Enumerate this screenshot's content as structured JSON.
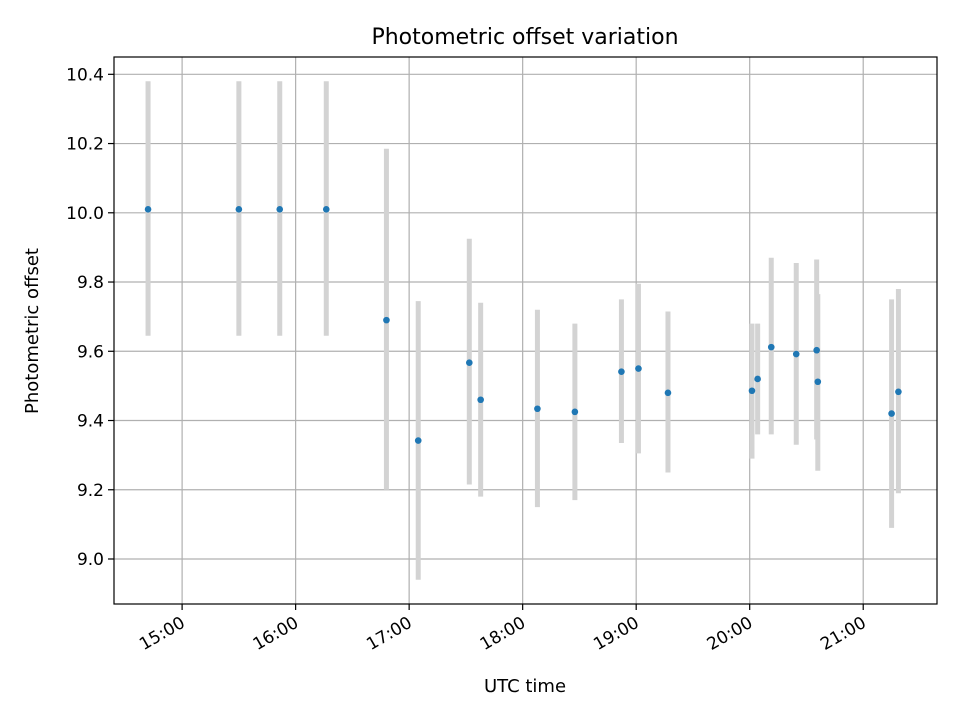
{
  "chart_data": {
    "type": "scatter",
    "title": "Photometric offset variation",
    "xlabel": "UTC time",
    "ylabel": "Photometric offset",
    "x_unit": "hours UTC",
    "xlim": [
      14.4,
      21.65
    ],
    "ylim": [
      8.87,
      10.45
    ],
    "xticks": [
      {
        "value": 15,
        "label": "15:00"
      },
      {
        "value": 16,
        "label": "16:00"
      },
      {
        "value": 17,
        "label": "17:00"
      },
      {
        "value": 18,
        "label": "18:00"
      },
      {
        "value": 19,
        "label": "19:00"
      },
      {
        "value": 20,
        "label": "20:00"
      },
      {
        "value": 21,
        "label": "21:00"
      }
    ],
    "yticks": [
      {
        "value": 9.0,
        "label": "9.0"
      },
      {
        "value": 9.2,
        "label": "9.2"
      },
      {
        "value": 9.4,
        "label": "9.4"
      },
      {
        "value": 9.6,
        "label": "9.6"
      },
      {
        "value": 9.8,
        "label": "9.8"
      },
      {
        "value": 10.0,
        "label": "10.0"
      },
      {
        "value": 10.2,
        "label": "10.2"
      },
      {
        "value": 10.4,
        "label": "10.4"
      }
    ],
    "grid": true,
    "colors": {
      "point": "#1f77b4",
      "errorbar": "#d3d3d3",
      "grid": "#b0b0b0",
      "axis": "#000000"
    },
    "points": [
      {
        "time": "14:42",
        "x": 14.7,
        "y": 10.01,
        "low": 9.645,
        "high": 10.38
      },
      {
        "time": "15:30",
        "x": 15.5,
        "y": 10.01,
        "low": 9.645,
        "high": 10.38
      },
      {
        "time": "15:52",
        "x": 15.86,
        "y": 10.01,
        "low": 9.645,
        "high": 10.38
      },
      {
        "time": "16:16",
        "x": 16.27,
        "y": 10.01,
        "low": 9.645,
        "high": 10.38
      },
      {
        "time": "16:48",
        "x": 16.8,
        "y": 9.69,
        "low": 9.2,
        "high": 10.185
      },
      {
        "time": "17:05",
        "x": 17.08,
        "y": 9.342,
        "low": 8.94,
        "high": 9.745
      },
      {
        "time": "17:32",
        "x": 17.53,
        "y": 9.567,
        "low": 9.215,
        "high": 9.925
      },
      {
        "time": "17:38",
        "x": 17.63,
        "y": 9.46,
        "low": 9.18,
        "high": 9.74
      },
      {
        "time": "18:07",
        "x": 18.13,
        "y": 9.434,
        "low": 9.15,
        "high": 9.72
      },
      {
        "time": "18:28",
        "x": 18.46,
        "y": 9.425,
        "low": 9.17,
        "high": 9.68
      },
      {
        "time": "18:52",
        "x": 18.87,
        "y": 9.541,
        "low": 9.335,
        "high": 9.75
      },
      {
        "time": "19:01",
        "x": 19.02,
        "y": 9.55,
        "low": 9.305,
        "high": 9.795
      },
      {
        "time": "19:17",
        "x": 19.28,
        "y": 9.48,
        "low": 9.25,
        "high": 9.715
      },
      {
        "time": "20:01",
        "x": 20.02,
        "y": 9.486,
        "low": 9.29,
        "high": 9.68
      },
      {
        "time": "20:04",
        "x": 20.07,
        "y": 9.52,
        "low": 9.36,
        "high": 9.68
      },
      {
        "time": "20:11",
        "x": 20.19,
        "y": 9.612,
        "low": 9.36,
        "high": 9.87
      },
      {
        "time": "20:24",
        "x": 20.41,
        "y": 9.592,
        "low": 9.33,
        "high": 9.855
      },
      {
        "time": "20:35",
        "x": 20.59,
        "y": 9.603,
        "low": 9.345,
        "high": 9.865
      },
      {
        "time": "20:36",
        "x": 20.6,
        "y": 9.512,
        "low": 9.255,
        "high": 9.765
      },
      {
        "time": "21:15",
        "x": 21.25,
        "y": 9.42,
        "low": 9.09,
        "high": 9.75
      },
      {
        "time": "21:19",
        "x": 21.31,
        "y": 9.483,
        "low": 9.19,
        "high": 9.78
      }
    ]
  }
}
